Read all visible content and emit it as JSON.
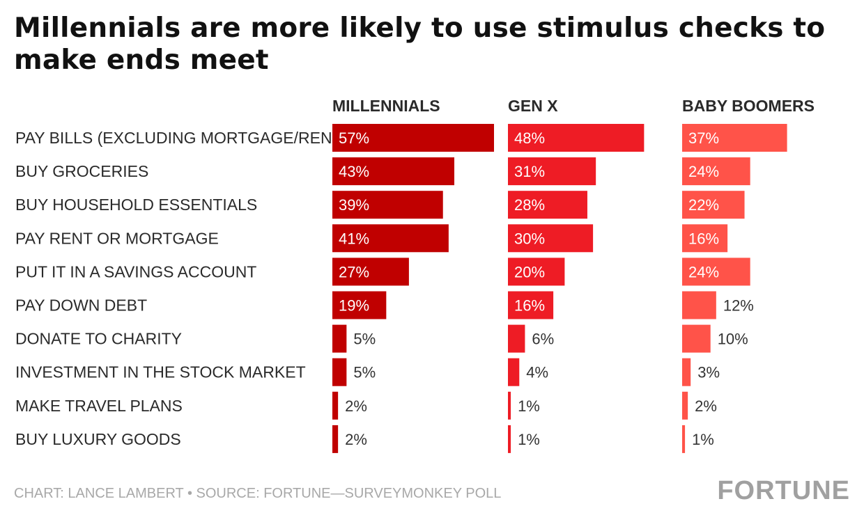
{
  "chart_data": {
    "type": "bar",
    "title": "Millennials are more likely to use stimulus checks to make ends meet",
    "categories": [
      "PAY BILLS (EXCLUDING MORTGAGE/RENT)",
      "BUY GROCERIES",
      "BUY HOUSEHOLD ESSENTIALS",
      "PAY RENT OR MORTGAGE",
      "PUT IT IN A SAVINGS ACCOUNT",
      "PAY DOWN DEBT",
      "DONATE TO CHARITY",
      "INVESTMENT IN THE STOCK MARKET",
      "MAKE TRAVEL PLANS",
      "BUY LUXURY GOODS"
    ],
    "series": [
      {
        "name": "MILLENNIALS",
        "color": "#c00000",
        "values": [
          57,
          43,
          39,
          41,
          27,
          19,
          5,
          5,
          2,
          2
        ]
      },
      {
        "name": "GEN X",
        "color": "#ee1c25",
        "values": [
          48,
          31,
          28,
          30,
          20,
          16,
          6,
          4,
          1,
          1
        ]
      },
      {
        "name": "BABY BOOMERS",
        "color": "#ff5349",
        "values": [
          37,
          24,
          22,
          16,
          24,
          12,
          10,
          3,
          2,
          1
        ]
      }
    ],
    "value_suffix": "%",
    "orientation": "horizontal",
    "layout": "small-multiples",
    "grid": false
  },
  "footer": {
    "credit": "CHART: LANCE LAMBERT • SOURCE: FORTUNE—SURVEYMONKEY POLL",
    "brand": "FORTUNE"
  }
}
